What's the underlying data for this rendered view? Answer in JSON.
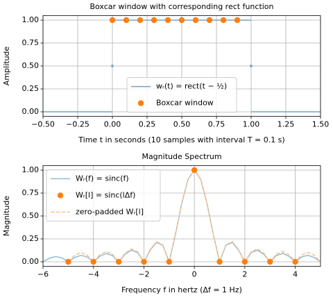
{
  "chart_data": [
    {
      "type": "line",
      "title": "Boxcar window with corresponding rect function",
      "xlabel": "Time t in seconds (10 samples with interval T = 0.1 s)",
      "ylabel": "Amplitude",
      "xlim": [
        -0.5,
        1.5
      ],
      "ylim": [
        -0.05,
        1.05
      ],
      "grid": true,
      "legend": "lower center",
      "xticks": [
        {
          "value": -0.5,
          "label": "−0.50"
        },
        {
          "value": -0.25,
          "label": "−0.25"
        },
        {
          "value": 0,
          "label": "0.00"
        },
        {
          "value": 0.25,
          "label": "0.25"
        },
        {
          "value": 0.5,
          "label": "0.50"
        },
        {
          "value": 0.75,
          "label": "0.75"
        },
        {
          "value": 1,
          "label": "1.00"
        },
        {
          "value": 1.25,
          "label": "1.25"
        },
        {
          "value": 1.5,
          "label": "1.50"
        }
      ],
      "yticks": [
        {
          "value": 0,
          "label": "0.00"
        },
        {
          "value": 0.25,
          "label": "0.25"
        },
        {
          "value": 0.5,
          "label": "0.50"
        },
        {
          "value": 0.75,
          "label": "0.75"
        },
        {
          "value": 1,
          "label": "1.00"
        }
      ],
      "series": [
        {
          "name": "wᵣ(t) = rect(t − ½)",
          "style": "line",
          "color": "#6fa3cd",
          "x": [
            -0.5,
            0,
            0,
            0,
            0,
            0,
            1,
            1,
            1,
            1,
            1,
            1.5
          ],
          "values": [
            0,
            0,
            null,
            0.5,
            null,
            1,
            1,
            null,
            0.5,
            null,
            0,
            0
          ]
        },
        {
          "name": "Boxcar window",
          "style": "scatter",
          "color": "#ff7f0e",
          "x": [
            0,
            0.1,
            0.2,
            0.3,
            0.4,
            0.5,
            0.6,
            0.7,
            0.8,
            0.9
          ],
          "values": [
            1,
            1,
            1,
            1,
            1,
            1,
            1,
            1,
            1,
            1
          ]
        }
      ]
    },
    {
      "type": "line",
      "title": "Magnitude Spectrum",
      "xlabel": "Frequency f in hertz (Δf = 1 Hz)",
      "ylabel": "Magnitude",
      "xlim": [
        -6,
        5
      ],
      "ylim": [
        -0.05,
        1.05
      ],
      "grid": true,
      "legend": "upper left",
      "xticks": [
        {
          "value": -6,
          "label": "−6"
        },
        {
          "value": -4,
          "label": "−4"
        },
        {
          "value": -2,
          "label": "−2"
        },
        0,
        2,
        4
      ],
      "yticks": [
        {
          "value": 0,
          "label": "0.00"
        },
        {
          "value": 0.25,
          "label": "0.25"
        },
        {
          "value": 0.5,
          "label": "0.50"
        },
        {
          "value": 0.75,
          "label": "0.75"
        },
        {
          "value": 1,
          "label": "1.00"
        }
      ],
      "series": [
        {
          "name": "Wᵣ(f) = sinc(f)",
          "style": "line",
          "color": "#8fbbd9",
          "x": [
            -6,
            -5.75,
            -5.5,
            -5.25,
            -5,
            -4.75,
            -4.5,
            -4.25,
            -4,
            -3.75,
            -3.5,
            -3.25,
            -3,
            -2.75,
            -2.5,
            -2.25,
            -2,
            -1.75,
            -1.5,
            -1.25,
            -1,
            -0.75,
            -0.5,
            -0.25,
            0,
            0.25,
            0.5,
            0.75,
            1,
            1.25,
            1.5,
            1.75,
            2,
            2.25,
            2.5,
            2.75,
            3,
            3.25,
            3.5,
            3.75,
            4,
            4.25,
            4.5,
            4.75,
            5
          ],
          "values": [
            0,
            0.039,
            0.058,
            0.043,
            0,
            0.047,
            0.071,
            0.053,
            0,
            0.06,
            0.091,
            0.069,
            0,
            0.082,
            0.127,
            0.1,
            0,
            0.129,
            0.212,
            0.18,
            0,
            0.3,
            0.637,
            0.9,
            1,
            0.9,
            0.637,
            0.3,
            0,
            0.18,
            0.212,
            0.129,
            0,
            0.1,
            0.127,
            0.082,
            0,
            0.069,
            0.091,
            0.06,
            0,
            0.053,
            0.071,
            0.047,
            0
          ]
        },
        {
          "name": "Wᵣ[l] = sinc(lΔf)",
          "style": "scatter",
          "color": "#ff7f0e",
          "x": [
            -5,
            -4,
            -3,
            -2,
            -1,
            0,
            1,
            2,
            3,
            4
          ],
          "values": [
            0,
            0,
            0,
            0,
            0,
            1,
            0,
            0,
            0,
            0
          ]
        },
        {
          "name": "zero-padded Wᵣ[l]",
          "style": "dashed",
          "color": "#ffbf86",
          "x": [
            -5,
            -4.75,
            -4.5,
            -4.25,
            -4,
            -3.75,
            -3.5,
            -3.25,
            -3,
            -2.75,
            -2.5,
            -2.25,
            -2,
            -1.75,
            -1.5,
            -1.25,
            -1,
            -0.75,
            -0.5,
            -0.25,
            0,
            0.25,
            0.5,
            0.75,
            1,
            1.25,
            1.5,
            1.75,
            2,
            2.25,
            2.5,
            2.75,
            3,
            3.25,
            3.5,
            3.75,
            4,
            4.25,
            4.5,
            4.75,
            5
          ],
          "values": [
            0,
            0.071,
            0.101,
            0.073,
            0,
            0.077,
            0.112,
            0.083,
            0,
            0.093,
            0.141,
            0.109,
            0,
            0.135,
            0.22,
            0.185,
            0,
            0.303,
            0.639,
            0.901,
            1,
            0.901,
            0.639,
            0.303,
            0,
            0.185,
            0.22,
            0.135,
            0,
            0.109,
            0.141,
            0.093,
            0,
            0.083,
            0.112,
            0.077,
            0,
            0.073,
            0.101,
            0.071,
            0
          ]
        }
      ]
    }
  ]
}
